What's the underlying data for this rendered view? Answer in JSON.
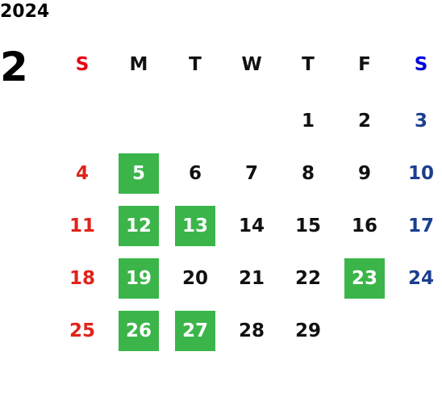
{
  "year": "2024",
  "month": "2",
  "weekdays": [
    "S",
    "M",
    "T",
    "W",
    "T",
    "F",
    "S"
  ],
  "weeks": [
    [
      null,
      null,
      null,
      null,
      {
        "day": "1"
      },
      {
        "day": "2"
      },
      {
        "day": "3"
      }
    ],
    [
      {
        "day": "4"
      },
      {
        "day": "5",
        "highlight": true
      },
      {
        "day": "6"
      },
      {
        "day": "7"
      },
      {
        "day": "8"
      },
      {
        "day": "9"
      },
      {
        "day": "10"
      }
    ],
    [
      {
        "day": "11"
      },
      {
        "day": "12",
        "highlight": true
      },
      {
        "day": "13",
        "highlight": true
      },
      {
        "day": "14"
      },
      {
        "day": "15"
      },
      {
        "day": "16"
      },
      {
        "day": "17"
      }
    ],
    [
      {
        "day": "18"
      },
      {
        "day": "19",
        "highlight": true
      },
      {
        "day": "20"
      },
      {
        "day": "21"
      },
      {
        "day": "22"
      },
      {
        "day": "23",
        "highlight": true
      },
      {
        "day": "24"
      }
    ],
    [
      {
        "day": "25"
      },
      {
        "day": "26",
        "highlight": true
      },
      {
        "day": "27",
        "highlight": true
      },
      {
        "day": "28"
      },
      {
        "day": "29"
      },
      null,
      null
    ]
  ]
}
